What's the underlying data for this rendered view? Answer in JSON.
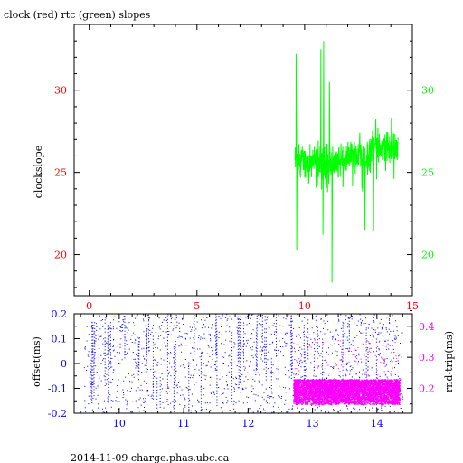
{
  "colors": {
    "clock": "#ff0000",
    "rtc": "#00ff00",
    "offset": "#0000ff",
    "roundtrip": "#ff00ff",
    "axis": "#000000"
  },
  "chart_data": [
    {
      "type": "line",
      "title": "clock (red) rtc (green) slopes",
      "ylabel": "clockslope",
      "xlim": [
        -0.7,
        15
      ],
      "ylim": [
        17.5,
        34
      ],
      "x_ticks": [
        "0",
        "5",
        "10",
        "15"
      ],
      "y_ticks_left": [
        "20",
        "25",
        "30"
      ],
      "y_ticks_right": [
        "20",
        "25",
        "30"
      ],
      "grid": false,
      "series": [
        {
          "color": "green",
          "x_range": [
            9.55,
            14.35
          ],
          "baseline": 25.6,
          "spikes": [
            {
              "x": 9.6,
              "y": 32.2
            },
            {
              "x": 9.63,
              "y": 20.3
            },
            {
              "x": 10.75,
              "y": 32.5
            },
            {
              "x": 10.88,
              "y": 33.0
            },
            {
              "x": 10.85,
              "y": 21.2
            },
            {
              "x": 11.15,
              "y": 30.5
            },
            {
              "x": 11.27,
              "y": 18.3
            },
            {
              "x": 12.8,
              "y": 21.5
            },
            {
              "x": 13.2,
              "y": 21.4
            },
            {
              "x": 13.4,
              "y": 27.7
            }
          ]
        }
      ]
    },
    {
      "type": "scatter",
      "footer": "2014-11-09 charge.phas.ubc.ca",
      "ylabel": "offset(ms)",
      "y2label": "rnd-trip(ms)",
      "xlim": [
        9.3,
        14.55
      ],
      "ylim": [
        -0.2,
        0.2
      ],
      "y2lim": [
        0.12,
        0.44
      ],
      "x_ticks": [
        "10",
        "11",
        "12",
        "13",
        "14"
      ],
      "y_ticks_left": [
        "0.2",
        "0.1",
        "0",
        "-0.1",
        "-0.2"
      ],
      "y_ticks_right": [
        "0.4",
        "0.3",
        "0.2"
      ],
      "series": [
        {
          "color": "blue",
          "axis": "left",
          "x_range": [
            9.45,
            14.4
          ]
        },
        {
          "color": "magenta",
          "axis": "right",
          "x_range": [
            12.7,
            14.35
          ],
          "y_range": [
            0.15,
            0.23
          ],
          "sparse_above": [
            0.24,
            0.36
          ]
        }
      ]
    }
  ]
}
